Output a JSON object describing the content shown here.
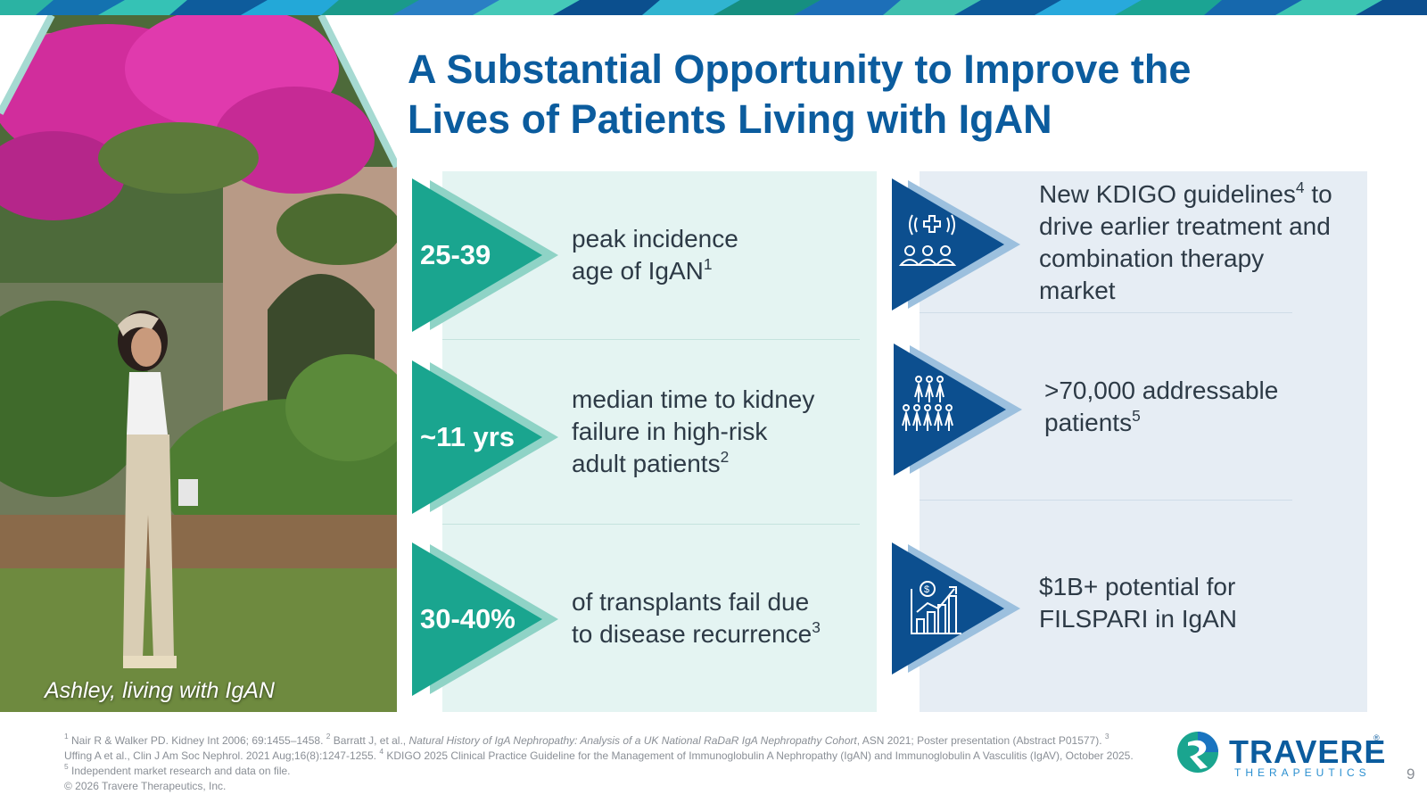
{
  "title": {
    "line1": "A Substantial Opportunity to Improve the",
    "line2": "Lives of Patients Living with IgAN"
  },
  "photo": {
    "caption": "Ashley, living with IgAN"
  },
  "left_stats": [
    {
      "value": "25-39",
      "desc_line1": "peak incidence",
      "desc_line2": "age of IgAN",
      "desc_line2_sup": "1"
    },
    {
      "value": "~11 yrs",
      "desc_line1": "median time to kidney",
      "desc_line2": "failure in high-risk",
      "desc_line3": "adult patients",
      "desc_line3_sup": "2"
    },
    {
      "value": "30-40%",
      "desc_line1": "of transplants fail due",
      "desc_line2": "to disease recurrence",
      "desc_line2_sup": "3"
    }
  ],
  "right_points": [
    {
      "icon": "healthcare-group-icon",
      "line1": "New KDIGO guidelines",
      "line1_sup": "4",
      "line1_tail": " to",
      "line2": "drive earlier treatment and",
      "line3": "combination therapy",
      "line4": "market"
    },
    {
      "icon": "patient-population-icon",
      "line1": ">70,000 addressable",
      "line2": "patients",
      "line2_sup": "5"
    },
    {
      "icon": "revenue-growth-chart-icon",
      "line1": "$1B+ potential for",
      "line2": "FILSPARI in IgAN"
    }
  ],
  "footnotes": {
    "fn1_mark": "1",
    "fn1": "Nair R & Walker PD. Kidney Int 2006; 69:1455–1458.",
    "fn2_mark": "2",
    "fn2_a": "Barratt J, et al., ",
    "fn2_italic": "Natural History of IgA Nephropathy: Analysis of a UK National RaDaR IgA Nephropathy Cohort",
    "fn2_b": ", ASN 2021; Poster presentation (Abstract P01577).",
    "fn3_mark": "3",
    "fn3": "Uffing A et al., Clin J Am Soc Nephrol. 2021 Aug;16(8):1247-1255.",
    "fn4_mark": "4",
    "fn4": "KDIGO 2025 Clinical Practice Guideline for the Management of Immunoglobulin A Nephropathy (IgAN) and Immunoglobulin A Vasculitis (IgAV), October 2025.",
    "fn5_mark": "5",
    "fn5": "Independent market research and data on file.",
    "copyright": "© 2026 Travere Therapeutics, Inc."
  },
  "logo": {
    "word": "TRAVERE",
    "sub": "THERAPEUTICS",
    "reg": "®"
  },
  "page_number": "9",
  "colors": {
    "title_blue": "#0b5c9e",
    "teal": "#1aa58f",
    "teal_light": "#8fd3c6",
    "navy": "#0c4f8f",
    "navy_light": "#9cc0de",
    "panel_teal": "#e4f4f2",
    "panel_blue": "#e6edf4"
  }
}
